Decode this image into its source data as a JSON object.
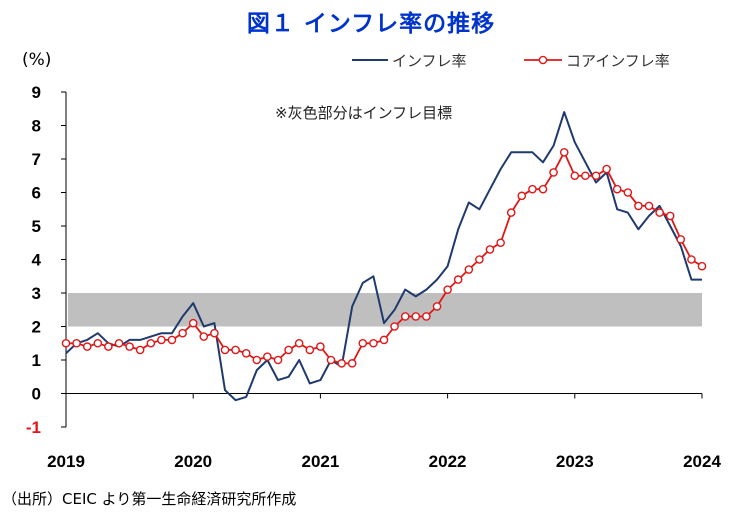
{
  "chart_data": {
    "type": "line",
    "title": "図１ インフレ率の推移",
    "ylabel": "(%)",
    "ylim": [
      -1,
      9
    ],
    "yticks": [
      9,
      8,
      7,
      6,
      5,
      4,
      3,
      2,
      1,
      0,
      -1
    ],
    "xlim": [
      2019,
      2024
    ],
    "xticks": [
      "2019",
      "2020",
      "2021",
      "2022",
      "2023",
      "2024"
    ],
    "grid": false,
    "legend_position": "top-right",
    "target_band": {
      "from": 2,
      "to": 3,
      "label": "※灰色部分はインフレ目標"
    },
    "series": [
      {
        "name": "インフレ率",
        "color": "#1f3a6e",
        "marker": "none",
        "x": [
          2019.0,
          2019.083,
          2019.167,
          2019.25,
          2019.333,
          2019.417,
          2019.5,
          2019.583,
          2019.667,
          2019.75,
          2019.833,
          2019.917,
          2020.0,
          2020.083,
          2020.167,
          2020.25,
          2020.333,
          2020.417,
          2020.5,
          2020.583,
          2020.667,
          2020.75,
          2020.833,
          2020.917,
          2021.0,
          2021.083,
          2021.167,
          2021.25,
          2021.333,
          2021.417,
          2021.5,
          2021.583,
          2021.667,
          2021.75,
          2021.833,
          2021.917,
          2022.0,
          2022.083,
          2022.167,
          2022.25,
          2022.333,
          2022.417,
          2022.5,
          2022.583,
          2022.667,
          2022.75,
          2022.833,
          2022.917,
          2023.0,
          2023.083,
          2023.167,
          2023.25,
          2023.333,
          2023.417,
          2023.5,
          2023.583,
          2023.667,
          2023.75,
          2023.833,
          2023.917,
          2024.0
        ],
        "values": [
          1.2,
          1.5,
          1.6,
          1.8,
          1.5,
          1.4,
          1.6,
          1.6,
          1.7,
          1.8,
          1.8,
          2.3,
          2.7,
          2.0,
          2.1,
          0.1,
          -0.2,
          -0.1,
          0.7,
          1.0,
          0.4,
          0.5,
          1.0,
          0.3,
          0.4,
          1.0,
          0.8,
          2.6,
          3.3,
          3.5,
          2.1,
          2.5,
          3.1,
          2.9,
          3.1,
          3.4,
          3.8,
          4.9,
          5.7,
          5.5,
          6.1,
          6.7,
          7.2,
          7.2,
          7.2,
          6.9,
          7.4,
          8.4,
          7.5,
          6.9,
          6.3,
          6.6,
          5.5,
          5.4,
          4.9,
          5.3,
          5.6,
          5.0,
          4.4,
          3.4,
          3.4
        ]
      },
      {
        "name": "コアインフレ率",
        "color": "#e01818",
        "marker": "circle",
        "x": [
          2019.0,
          2019.083,
          2019.167,
          2019.25,
          2019.333,
          2019.417,
          2019.5,
          2019.583,
          2019.667,
          2019.75,
          2019.833,
          2019.917,
          2020.0,
          2020.083,
          2020.167,
          2020.25,
          2020.333,
          2020.417,
          2020.5,
          2020.583,
          2020.667,
          2020.75,
          2020.833,
          2020.917,
          2021.0,
          2021.083,
          2021.167,
          2021.25,
          2021.333,
          2021.417,
          2021.5,
          2021.583,
          2021.667,
          2021.75,
          2021.833,
          2021.917,
          2022.0,
          2022.083,
          2022.167,
          2022.25,
          2022.333,
          2022.417,
          2022.5,
          2022.583,
          2022.667,
          2022.75,
          2022.833,
          2022.917,
          2023.0,
          2023.083,
          2023.167,
          2023.25,
          2023.333,
          2023.417,
          2023.5,
          2023.583,
          2023.667,
          2023.75,
          2023.833,
          2023.917,
          2024.0
        ],
        "values": [
          1.5,
          1.5,
          1.4,
          1.5,
          1.4,
          1.5,
          1.4,
          1.3,
          1.5,
          1.6,
          1.6,
          1.8,
          2.1,
          1.7,
          1.8,
          1.3,
          1.3,
          1.2,
          1.0,
          1.1,
          1.0,
          1.3,
          1.5,
          1.3,
          1.4,
          1.0,
          0.9,
          0.9,
          1.5,
          1.5,
          1.6,
          2.0,
          2.3,
          2.3,
          2.3,
          2.6,
          3.1,
          3.4,
          3.7,
          4.0,
          4.3,
          4.5,
          5.4,
          5.9,
          6.1,
          6.1,
          6.6,
          7.2,
          6.5,
          6.5,
          6.5,
          6.7,
          6.1,
          6.0,
          5.6,
          5.6,
          5.4,
          5.3,
          4.6,
          4.0,
          3.8
        ]
      }
    ]
  },
  "source": "（出所）CEIC より第一生命経済研究所作成"
}
